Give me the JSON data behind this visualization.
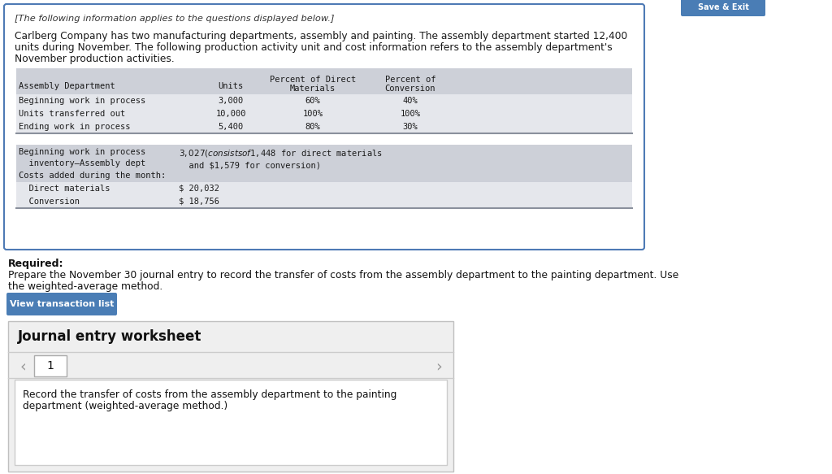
{
  "italic_header": "[The following information applies to the questions displayed below.]",
  "paragraph_line1": "Carlberg Company has two manufacturing departments, assembly and painting. The assembly department started 12,400",
  "paragraph_line2": "units during November. The following production activity unit and cost information refers to the assembly department's",
  "paragraph_line3": "November production activities.",
  "col1_header": "Assembly Department",
  "col2_header": "Units",
  "col3_header": "Percent of Direct\nMaterials",
  "col4_header": "Percent of\nConversion",
  "t1_rows": [
    [
      "Beginning work in process",
      "3,000",
      "60%",
      "40%"
    ],
    [
      "Units transferred out",
      "10,000",
      "100%",
      "100%"
    ],
    [
      "Ending work in process",
      "5,400",
      "80%",
      "30%"
    ]
  ],
  "t2_row1_left": "Beginning work in process\n  inventory–Assembly dept",
  "t2_row1_right": "$3,027 (consists of $1,448 for direct materials\n  and $1,579 for conversion)",
  "t2_row2": "Costs added during the month:",
  "t2_row3_left": "  Direct materials",
  "t2_row3_right": "$ 20,032",
  "t2_row4_left": "  Conversion",
  "t2_row4_right": "$ 18,756",
  "table_header_bg": "#cdd0d8",
  "table_data_bg": "#e5e7ec",
  "table_border": "#8a909c",
  "outer_box_border": "#4e7ab5",
  "outer_box_bg": "#ffffff",
  "required_label": "Required:",
  "required_text1": "Prepare the November 30 journal entry to record the transfer of costs from the assembly department to the painting department. Use",
  "required_text2": "the weighted-average method.",
  "btn_text": "View transaction list",
  "btn_bg": "#4a7db5",
  "btn_fg": "#ffffff",
  "journal_title": "Journal entry worksheet",
  "journal_bg": "#efefef",
  "journal_border": "#c0c0c0",
  "page_num": "1",
  "record_text1": "Record the transfer of costs from the assembly department to the painting",
  "record_text2": "department (weighted-average method.)",
  "bg": "#ffffff",
  "mono": "DejaVu Sans Mono",
  "sans": "DejaVu Sans",
  "top_right_btn_bg": "#4a7db5",
  "top_right_btn_text": "Save & Exit"
}
